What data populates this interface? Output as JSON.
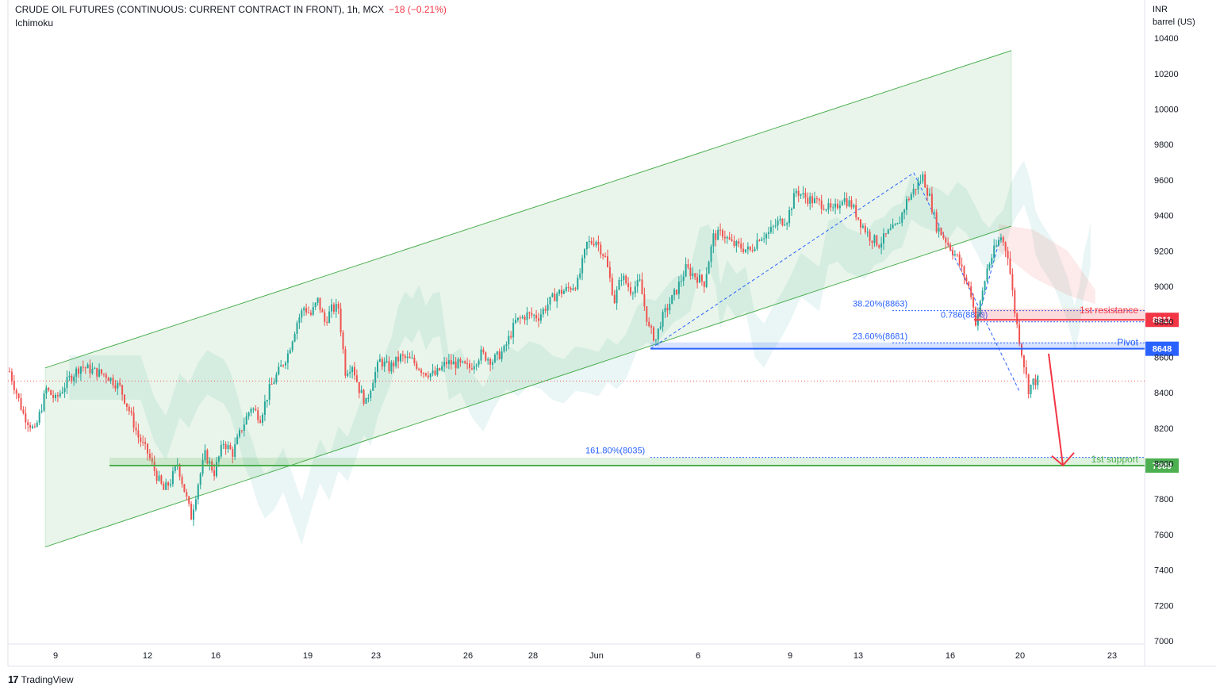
{
  "header": {
    "symbol_title": "CRUDE OIL FUTURES (CONTINUOUS: CURRENT CONTRACT IN FRONT)",
    "interval": "1h",
    "exchange": "MCX",
    "change": "−18 (−0.21%)",
    "indicator": "Ichimoku",
    "currency": "INR",
    "unit": "barrel (US)"
  },
  "branding": {
    "logo_text": "TradingView",
    "logo_icon": "tradingview-logo-icon"
  },
  "colors": {
    "up": "#26a69a",
    "down": "#ef5350",
    "channel": "#4caf50",
    "resistance": "#f23645",
    "pivot": "#2962ff",
    "support": "#4caf50",
    "fib": "#2962ff",
    "last_price_line": "#ef5350"
  },
  "chart_data": {
    "type": "candlestick",
    "timeframe": "1h",
    "x_ticks": [
      "9",
      "12",
      "16",
      "19",
      "23",
      "26",
      "28",
      "Jun",
      "6",
      "9",
      "13",
      "16",
      "20",
      "23"
    ],
    "y_ticks": [
      7000,
      7200,
      7400,
      7600,
      7800,
      8000,
      8200,
      8400,
      8600,
      8800,
      9000,
      9200,
      9400,
      9600,
      9800,
      10000,
      10200,
      10400
    ],
    "ylim": [
      7000,
      10400
    ],
    "price_path": [
      [
        0,
        8520
      ],
      [
        6,
        8280
      ],
      [
        11,
        8180
      ],
      [
        16,
        8420
      ],
      [
        20,
        8360
      ],
      [
        26,
        8480
      ],
      [
        31,
        8550
      ],
      [
        37,
        8520
      ],
      [
        42,
        8500
      ],
      [
        48,
        8430
      ],
      [
        52,
        8300
      ],
      [
        56,
        8150
      ],
      [
        60,
        8060
      ],
      [
        64,
        7930
      ],
      [
        67,
        7850
      ],
      [
        70,
        7900
      ],
      [
        73,
        8000
      ],
      [
        76,
        7850
      ],
      [
        79,
        7700
      ],
      [
        82,
        7890
      ],
      [
        85,
        8050
      ],
      [
        89,
        7950
      ],
      [
        93,
        8120
      ],
      [
        97,
        8060
      ],
      [
        101,
        8200
      ],
      [
        105,
        8320
      ],
      [
        109,
        8260
      ],
      [
        113,
        8420
      ],
      [
        117,
        8520
      ],
      [
        121,
        8620
      ],
      [
        125,
        8800
      ],
      [
        128,
        8880
      ],
      [
        131,
        8840
      ],
      [
        134,
        8920
      ],
      [
        137,
        8800
      ],
      [
        140,
        8870
      ],
      [
        143,
        8880
      ],
      [
        146,
        8520
      ],
      [
        149,
        8560
      ],
      [
        152,
        8420
      ],
      [
        155,
        8340
      ],
      [
        158,
        8480
      ],
      [
        161,
        8580
      ],
      [
        165,
        8540
      ],
      [
        170,
        8600
      ],
      [
        175,
        8580
      ],
      [
        180,
        8520
      ],
      [
        185,
        8500
      ],
      [
        190,
        8570
      ],
      [
        195,
        8560
      ],
      [
        200,
        8540
      ],
      [
        205,
        8620
      ],
      [
        210,
        8580
      ],
      [
        215,
        8640
      ],
      [
        220,
        8800
      ],
      [
        225,
        8840
      ],
      [
        230,
        8830
      ],
      [
        234,
        8900
      ],
      [
        238,
        8960
      ],
      [
        242,
        8980
      ],
      [
        247,
        9020
      ],
      [
        251,
        9240
      ],
      [
        255,
        9260
      ],
      [
        259,
        9160
      ],
      [
        263,
        8920
      ],
      [
        266,
        9060
      ],
      [
        270,
        8980
      ],
      [
        274,
        9020
      ],
      [
        278,
        8760
      ],
      [
        281,
        8700
      ],
      [
        283,
        8800
      ],
      [
        286,
        8880
      ],
      [
        290,
        8980
      ],
      [
        294,
        9100
      ],
      [
        298,
        9060
      ],
      [
        302,
        9020
      ],
      [
        306,
        9280
      ],
      [
        310,
        9300
      ],
      [
        314,
        9240
      ],
      [
        318,
        9220
      ],
      [
        322,
        9200
      ],
      [
        326,
        9280
      ],
      [
        330,
        9300
      ],
      [
        334,
        9360
      ],
      [
        338,
        9380
      ],
      [
        342,
        9540
      ],
      [
        346,
        9500
      ],
      [
        350,
        9480
      ],
      [
        354,
        9460
      ],
      [
        358,
        9420
      ],
      [
        362,
        9500
      ],
      [
        366,
        9460
      ],
      [
        370,
        9360
      ],
      [
        374,
        9280
      ],
      [
        378,
        9240
      ],
      [
        382,
        9300
      ],
      [
        386,
        9340
      ],
      [
        390,
        9480
      ],
      [
        394,
        9560
      ],
      [
        397,
        9620
      ],
      [
        400,
        9500
      ],
      [
        403,
        9340
      ],
      [
        406,
        9280
      ],
      [
        409,
        9220
      ],
      [
        412,
        9160
      ],
      [
        415,
        9060
      ],
      [
        418,
        8960
      ],
      [
        420,
        8800
      ],
      [
        422,
        8900
      ],
      [
        425,
        9100
      ],
      [
        428,
        9200
      ],
      [
        431,
        9280
      ],
      [
        434,
        9180
      ],
      [
        437,
        8860
      ],
      [
        439,
        8700
      ],
      [
        441,
        8560
      ],
      [
        443,
        8420
      ],
      [
        445,
        8460
      ],
      [
        447,
        8470
      ]
    ],
    "channel": {
      "upper": [
        [
          0,
          8540
        ],
        [
          402,
          10330
        ]
      ],
      "lower": [
        [
          0,
          7530
        ],
        [
          402,
          9340
        ]
      ]
    },
    "levels": [
      {
        "name": "1st resistance",
        "value": 8811,
        "label": "8811",
        "color": "#f23645"
      },
      {
        "name": "Pivot",
        "value": 8648,
        "label": "8648",
        "color": "#2962ff"
      },
      {
        "name": "1st support",
        "value": 7989,
        "label": "7989",
        "color": "#4caf50"
      }
    ],
    "fib_labels": [
      {
        "label": "38.20%(8863)",
        "value": 8863
      },
      {
        "label": "0.786(8800)",
        "value": 8800
      },
      {
        "label": "23.60%(8681)",
        "value": 8681
      },
      {
        "label": "161.80%(8035)",
        "value": 8035
      }
    ],
    "last_price": 8466,
    "projection": {
      "from_value": 8620,
      "to_value": 7990
    }
  }
}
